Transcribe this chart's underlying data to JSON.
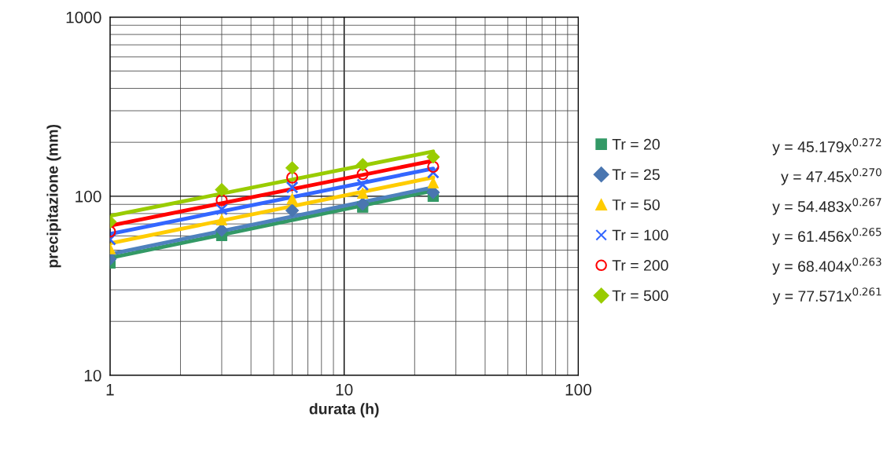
{
  "chart_data": {
    "type": "scatter",
    "xlabel": "durata (h)",
    "ylabel": "precipitazione (mm)",
    "log": "xy",
    "xlim": [
      1,
      100
    ],
    "ylim": [
      10,
      1000
    ],
    "xticks": [
      1,
      10,
      100
    ],
    "yticks": [
      10,
      100,
      1000
    ],
    "grid": true,
    "legend": "right",
    "series": [
      {
        "name": "Tr = 20",
        "marker": "square",
        "color": "#339966",
        "x": [
          1,
          3,
          6,
          12,
          24
        ],
        "values": [
          42.4,
          60.4,
          null,
          86.9,
          100
        ]
      },
      {
        "name": "Tr = 25",
        "marker": "diamond",
        "color": "#4a76b0",
        "x": [
          1,
          3,
          6,
          12,
          24
        ],
        "values": [
          44.6,
          64.6,
          83.2,
          90.4,
          105
        ]
      },
      {
        "name": "Tr = 50",
        "marker": "triangle",
        "color": "#ffcc00",
        "x": [
          1,
          3,
          6,
          12,
          24
        ],
        "values": [
          51,
          73.9,
          96.7,
          104,
          119
        ]
      },
      {
        "name": "Tr = 100",
        "marker": "cross",
        "color": "#3366ff",
        "x": [
          1,
          3,
          6,
          12,
          24
        ],
        "values": [
          57.4,
          84.5,
          112,
          116,
          135.5
        ]
      },
      {
        "name": "Tr = 200",
        "marker": "circle",
        "color": "#ff0000",
        "x": [
          1,
          3,
          6,
          12,
          24
        ],
        "values": [
          63.5,
          95,
          127,
          133,
          146
        ]
      },
      {
        "name": "Tr = 500",
        "marker": "diamond",
        "color": "#99cc00",
        "x": [
          1,
          3,
          6,
          12,
          24
        ],
        "values": [
          71.9,
          108.7,
          143.8,
          149.8,
          165.7
        ]
      },
      {
        "type": "line",
        "marker": "none",
        "color": "#339966",
        "x": [
          1,
          24
        ],
        "values": [
          45.2,
          107.2
        ]
      },
      {
        "type": "line",
        "marker": "none",
        "color": "#4f81bd",
        "x": [
          1,
          24
        ],
        "values": [
          47.5,
          111.9
        ]
      },
      {
        "type": "line",
        "marker": "none",
        "color": "#ffcc00",
        "x": [
          1,
          24
        ],
        "values": [
          54.5,
          127.3
        ]
      },
      {
        "type": "line",
        "marker": "none",
        "color": "#3366ff",
        "x": [
          1,
          24
        ],
        "values": [
          61.5,
          142.7
        ]
      },
      {
        "type": "line",
        "marker": "none",
        "color": "#ff0000",
        "x": [
          1,
          24
        ],
        "values": [
          68.4,
          157.8
        ]
      },
      {
        "type": "line",
        "marker": "none",
        "color": "#99cc00",
        "x": [
          1,
          24
        ],
        "values": [
          77.6,
          177.8
        ]
      }
    ],
    "annotations": [
      "y = 45.179x$^{0.272}$",
      "y = 47.45x$^{0.270}$",
      "y = 54.483x$^{0.267}$",
      "y = 61.456x$^{0.265}$",
      "y = 68.404x$^{0.263}$",
      "y = 77.571x$^{0.261}$"
    ]
  }
}
